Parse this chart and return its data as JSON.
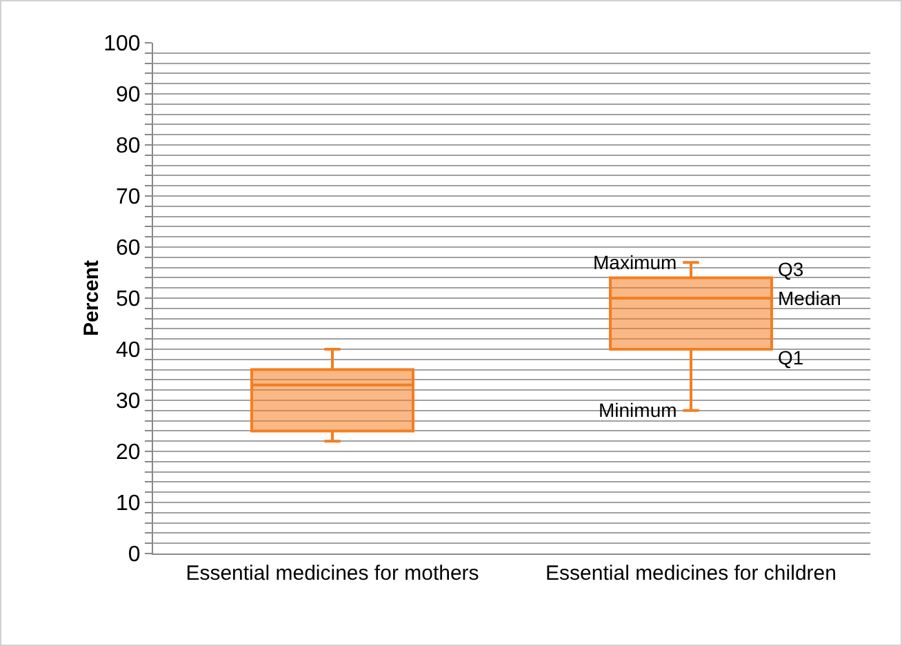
{
  "chart_data": {
    "type": "box",
    "ylabel": "Percent",
    "categories": [
      "Essential medicines for mothers",
      "Essential medicines for children"
    ],
    "boxes": [
      {
        "low": 22,
        "q1": 24,
        "median": 33,
        "q3": 36,
        "high": 40
      },
      {
        "low": 28,
        "q1": 40,
        "median": 50,
        "q3": 54,
        "high": 57
      }
    ],
    "color": "#f47e20",
    "ylim": [
      0,
      100
    ],
    "yticks": [
      0,
      {
        "value": 2,
        "label": null
      },
      {
        "value": 4,
        "label": null
      },
      {
        "value": 6,
        "label": null
      },
      {
        "value": 8,
        "label": null
      },
      10,
      {
        "value": 12,
        "label": null
      },
      {
        "value": 14,
        "label": null
      },
      {
        "value": 16,
        "label": null
      },
      {
        "value": 18,
        "label": null
      },
      20,
      {
        "value": 22,
        "label": null
      },
      {
        "value": 24,
        "label": null
      },
      {
        "value": 26,
        "label": null
      },
      {
        "value": 28,
        "label": null
      },
      30,
      {
        "value": 32,
        "label": null
      },
      {
        "value": 34,
        "label": null
      },
      {
        "value": 36,
        "label": null
      },
      {
        "value": 38,
        "label": null
      },
      40,
      {
        "value": 42,
        "label": null
      },
      {
        "value": 44,
        "label": null
      },
      {
        "value": 46,
        "label": null
      },
      {
        "value": 48,
        "label": null
      },
      50,
      {
        "value": 52,
        "label": null
      },
      {
        "value": 54,
        "label": null
      },
      {
        "value": 56,
        "label": null
      },
      {
        "value": 58,
        "label": null
      },
      60,
      {
        "value": 62,
        "label": null
      },
      {
        "value": 64,
        "label": null
      },
      {
        "value": 66,
        "label": null
      },
      {
        "value": 68,
        "label": null
      },
      70,
      {
        "value": 72,
        "label": null
      },
      {
        "value": 74,
        "label": null
      },
      {
        "value": 76,
        "label": null
      },
      {
        "value": 78,
        "label": null
      },
      80,
      {
        "value": 82,
        "label": null
      },
      {
        "value": 84,
        "label": null
      },
      {
        "value": 86,
        "label": null
      },
      {
        "value": 88,
        "label": null
      },
      90,
      {
        "value": 92,
        "label": null
      },
      {
        "value": 94,
        "label": null
      },
      {
        "value": 96,
        "label": null
      },
      {
        "value": 98,
        "label": null
      },
      100
    ],
    "grid": "y",
    "annotations": [
      "Maximum",
      "Q3",
      "Median",
      "Q1",
      "Minimum"
    ]
  }
}
